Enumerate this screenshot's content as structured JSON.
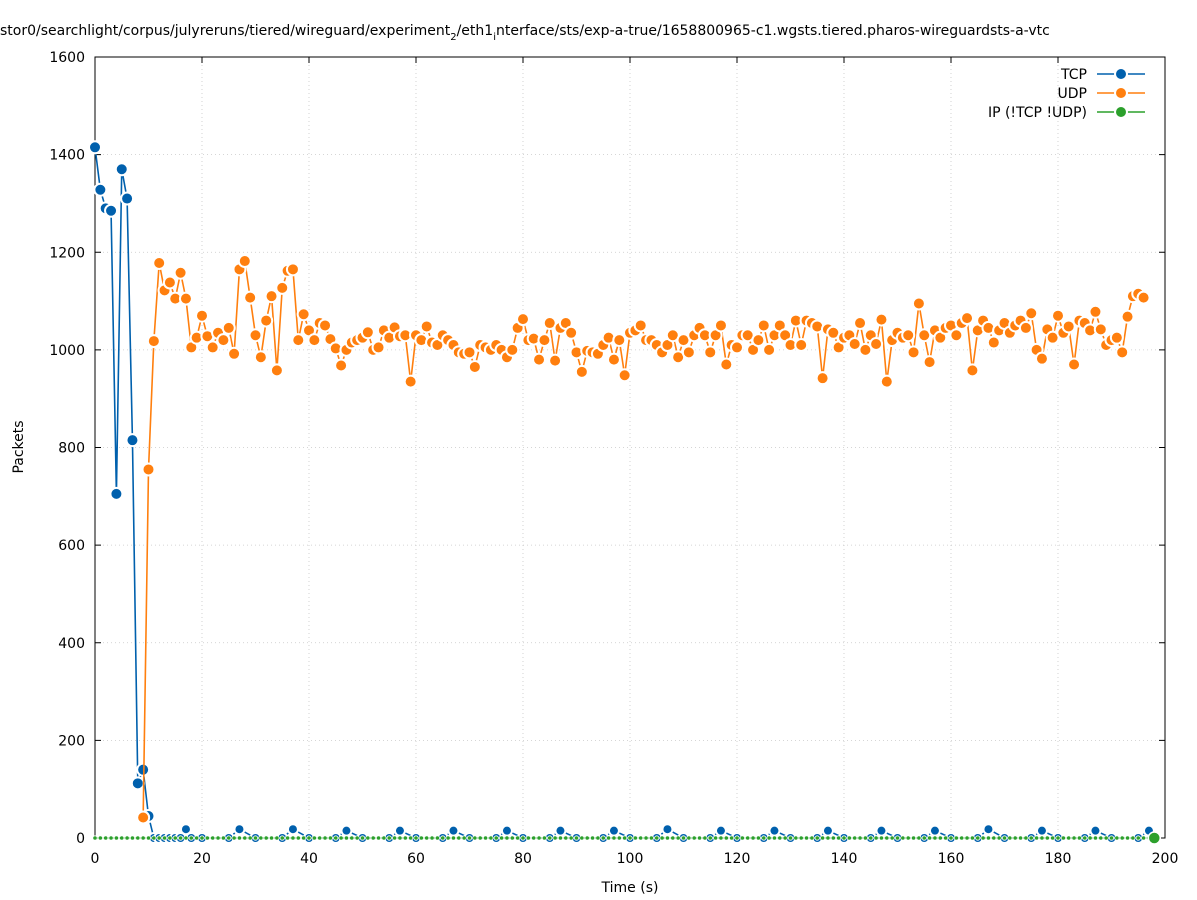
{
  "chart_data": {
    "type": "line",
    "title": "stor0/searchlight/corpus/julyreruns/tiered/wireguard/experiment",
    "title_sub1": "2",
    "title_mid": "/eth1",
    "title_sub2": "i",
    "title_tail": "nterface/sts/exp-a-true/1658800965-c1.wgsts.tiered.pharos-wireguardsts-a-vtc",
    "xlabel": "Time (s)",
    "ylabel": "Packets",
    "xlim": [
      0,
      200
    ],
    "ylim": [
      0,
      1600
    ],
    "xticks": [
      0,
      20,
      40,
      60,
      80,
      100,
      120,
      140,
      160,
      180,
      200
    ],
    "yticks": [
      0,
      200,
      400,
      600,
      800,
      1000,
      1200,
      1400,
      1600
    ],
    "grid": true,
    "legend_position": "top-right",
    "series": [
      {
        "name": "TCP",
        "color": "#0060ad",
        "points": [
          [
            0,
            1415
          ],
          [
            1,
            1328
          ],
          [
            2,
            1290
          ],
          [
            3,
            1285
          ],
          [
            4,
            705
          ],
          [
            5,
            1370
          ],
          [
            6,
            1310
          ],
          [
            7,
            815
          ],
          [
            8,
            112
          ],
          [
            9,
            140
          ],
          [
            10,
            45
          ],
          [
            11,
            0
          ],
          [
            12,
            0
          ],
          [
            13,
            0
          ],
          [
            14,
            0
          ],
          [
            15,
            0
          ],
          [
            16,
            0
          ],
          [
            17,
            18
          ],
          [
            18,
            0
          ],
          [
            20,
            0
          ],
          [
            25,
            0
          ],
          [
            27,
            18
          ],
          [
            30,
            0
          ],
          [
            35,
            0
          ],
          [
            37,
            18
          ],
          [
            40,
            0
          ],
          [
            45,
            0
          ],
          [
            47,
            15
          ],
          [
            50,
            0
          ],
          [
            55,
            0
          ],
          [
            57,
            15
          ],
          [
            60,
            0
          ],
          [
            65,
            0
          ],
          [
            67,
            15
          ],
          [
            70,
            0
          ],
          [
            75,
            0
          ],
          [
            77,
            15
          ],
          [
            80,
            0
          ],
          [
            85,
            0
          ],
          [
            87,
            15
          ],
          [
            90,
            0
          ],
          [
            95,
            0
          ],
          [
            97,
            15
          ],
          [
            100,
            0
          ],
          [
            105,
            0
          ],
          [
            107,
            18
          ],
          [
            110,
            0
          ],
          [
            115,
            0
          ],
          [
            117,
            15
          ],
          [
            120,
            0
          ],
          [
            125,
            0
          ],
          [
            127,
            15
          ],
          [
            130,
            0
          ],
          [
            135,
            0
          ],
          [
            137,
            15
          ],
          [
            140,
            0
          ],
          [
            145,
            0
          ],
          [
            147,
            15
          ],
          [
            150,
            0
          ],
          [
            155,
            0
          ],
          [
            157,
            15
          ],
          [
            160,
            0
          ],
          [
            165,
            0
          ],
          [
            167,
            18
          ],
          [
            170,
            0
          ],
          [
            175,
            0
          ],
          [
            177,
            15
          ],
          [
            180,
            0
          ],
          [
            185,
            0
          ],
          [
            187,
            15
          ],
          [
            190,
            0
          ],
          [
            195,
            0
          ],
          [
            197,
            15
          ],
          [
            198,
            0
          ]
        ]
      },
      {
        "name": "UDP",
        "color": "#ff7f0e",
        "points": [
          [
            9,
            42
          ],
          [
            10,
            755
          ],
          [
            11,
            1018
          ],
          [
            12,
            1178
          ],
          [
            13,
            1122
          ],
          [
            14,
            1138
          ],
          [
            15,
            1105
          ],
          [
            16,
            1158
          ],
          [
            17,
            1105
          ],
          [
            18,
            1005
          ],
          [
            19,
            1025
          ],
          [
            20,
            1070
          ],
          [
            21,
            1028
          ],
          [
            22,
            1005
          ],
          [
            23,
            1035
          ],
          [
            24,
            1020
          ],
          [
            25,
            1045
          ],
          [
            26,
            992
          ],
          [
            27,
            1165
          ],
          [
            28,
            1182
          ],
          [
            29,
            1107
          ],
          [
            30,
            1030
          ],
          [
            31,
            985
          ],
          [
            32,
            1060
          ],
          [
            33,
            1110
          ],
          [
            34,
            958
          ],
          [
            35,
            1127
          ],
          [
            36,
            1162
          ],
          [
            37,
            1165
          ],
          [
            38,
            1020
          ],
          [
            39,
            1073
          ],
          [
            40,
            1040
          ],
          [
            41,
            1020
          ],
          [
            42,
            1055
          ],
          [
            43,
            1050
          ],
          [
            44,
            1022
          ],
          [
            45,
            1003
          ],
          [
            46,
            968
          ],
          [
            47,
            1000
          ],
          [
            48,
            1015
          ],
          [
            49,
            1020
          ],
          [
            50,
            1025
          ],
          [
            51,
            1036
          ],
          [
            52,
            1000
          ],
          [
            53,
            1005
          ],
          [
            54,
            1040
          ],
          [
            55,
            1025
          ],
          [
            56,
            1046
          ],
          [
            57,
            1028
          ],
          [
            58,
            1030
          ],
          [
            59,
            935
          ],
          [
            60,
            1030
          ],
          [
            61,
            1020
          ],
          [
            62,
            1048
          ],
          [
            63,
            1015
          ],
          [
            64,
            1010
          ],
          [
            65,
            1030
          ],
          [
            66,
            1020
          ],
          [
            67,
            1010
          ],
          [
            68,
            995
          ],
          [
            69,
            992
          ],
          [
            70,
            995
          ],
          [
            71,
            965
          ],
          [
            72,
            1010
          ],
          [
            73,
            1005
          ],
          [
            74,
            1000
          ],
          [
            75,
            1010
          ],
          [
            76,
            1000
          ],
          [
            77,
            985
          ],
          [
            78,
            1000
          ],
          [
            79,
            1045
          ],
          [
            80,
            1063
          ],
          [
            81,
            1020
          ],
          [
            82,
            1023
          ],
          [
            83,
            980
          ],
          [
            84,
            1020
          ],
          [
            85,
            1055
          ],
          [
            86,
            978
          ],
          [
            87,
            1045
          ],
          [
            88,
            1055
          ],
          [
            89,
            1035
          ],
          [
            90,
            995
          ],
          [
            91,
            955
          ],
          [
            92,
            998
          ],
          [
            93,
            995
          ],
          [
            94,
            992
          ],
          [
            95,
            1010
          ],
          [
            96,
            1025
          ],
          [
            97,
            980
          ],
          [
            98,
            1020
          ],
          [
            99,
            948
          ],
          [
            100,
            1035
          ],
          [
            101,
            1040
          ],
          [
            102,
            1050
          ],
          [
            103,
            1020
          ],
          [
            104,
            1020
          ],
          [
            105,
            1010
          ],
          [
            106,
            995
          ],
          [
            107,
            1010
          ],
          [
            108,
            1030
          ],
          [
            109,
            985
          ],
          [
            110,
            1020
          ],
          [
            111,
            995
          ],
          [
            112,
            1030
          ],
          [
            113,
            1045
          ],
          [
            114,
            1030
          ],
          [
            115,
            995
          ],
          [
            116,
            1030
          ],
          [
            117,
            1050
          ],
          [
            118,
            970
          ],
          [
            119,
            1010
          ],
          [
            120,
            1005
          ],
          [
            121,
            1030
          ],
          [
            122,
            1030
          ],
          [
            123,
            1000
          ],
          [
            124,
            1020
          ],
          [
            125,
            1050
          ],
          [
            126,
            1000
          ],
          [
            127,
            1030
          ],
          [
            128,
            1050
          ],
          [
            129,
            1030
          ],
          [
            130,
            1010
          ],
          [
            131,
            1060
          ],
          [
            132,
            1010
          ],
          [
            133,
            1060
          ],
          [
            134,
            1055
          ],
          [
            135,
            1048
          ],
          [
            136,
            942
          ],
          [
            137,
            1042
          ],
          [
            138,
            1035
          ],
          [
            139,
            1005
          ],
          [
            140,
            1025
          ],
          [
            141,
            1030
          ],
          [
            142,
            1012
          ],
          [
            143,
            1055
          ],
          [
            144,
            1000
          ],
          [
            145,
            1030
          ],
          [
            146,
            1012
          ],
          [
            147,
            1062
          ],
          [
            148,
            935
          ],
          [
            149,
            1020
          ],
          [
            150,
            1035
          ],
          [
            151,
            1025
          ],
          [
            152,
            1030
          ],
          [
            153,
            995
          ],
          [
            154,
            1095
          ],
          [
            155,
            1030
          ],
          [
            156,
            975
          ],
          [
            157,
            1040
          ],
          [
            158,
            1025
          ],
          [
            159,
            1045
          ],
          [
            160,
            1050
          ],
          [
            161,
            1030
          ],
          [
            162,
            1055
          ],
          [
            163,
            1065
          ],
          [
            164,
            958
          ],
          [
            165,
            1040
          ],
          [
            166,
            1060
          ],
          [
            167,
            1045
          ],
          [
            168,
            1015
          ],
          [
            169,
            1040
          ],
          [
            170,
            1055
          ],
          [
            171,
            1035
          ],
          [
            172,
            1050
          ],
          [
            173,
            1060
          ],
          [
            174,
            1045
          ],
          [
            175,
            1075
          ],
          [
            176,
            1000
          ],
          [
            177,
            982
          ],
          [
            178,
            1042
          ],
          [
            179,
            1025
          ],
          [
            180,
            1070
          ],
          [
            181,
            1035
          ],
          [
            182,
            1048
          ],
          [
            183,
            970
          ],
          [
            184,
            1060
          ],
          [
            185,
            1055
          ],
          [
            186,
            1040
          ],
          [
            187,
            1078
          ],
          [
            188,
            1042
          ],
          [
            189,
            1010
          ],
          [
            190,
            1020
          ],
          [
            191,
            1025
          ],
          [
            192,
            995
          ],
          [
            193,
            1068
          ],
          [
            194,
            1110
          ],
          [
            195,
            1115
          ],
          [
            196,
            1107
          ]
        ]
      },
      {
        "name": "IP (!TCP  !UDP)",
        "color": "#2ca02c",
        "x_start": 0,
        "x_end": 198,
        "x_step": 1,
        "value": 0
      }
    ]
  }
}
